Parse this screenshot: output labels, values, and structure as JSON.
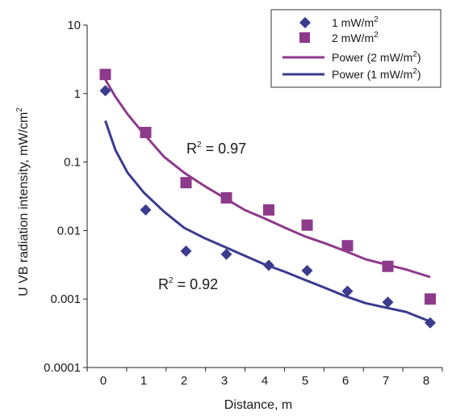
{
  "chart_data": {
    "type": "scatter",
    "title": "",
    "xlabel": "Distance, m",
    "ylabel": {
      "text": "U VB radiation intensity,  mW/cm",
      "sup": "2"
    },
    "x_ticks": [
      "0",
      "1",
      "2",
      "3",
      "4",
      "5",
      "6",
      "7",
      "8"
    ],
    "y_ticks": [
      "0.0001",
      "0.001",
      "0.01",
      "0.1",
      "1",
      "10"
    ],
    "xlim": [
      -0.4,
      8.4
    ],
    "ylim": [
      0.0001,
      10
    ],
    "y_scale": "log",
    "grid": false,
    "legend_position": "top-right",
    "series": [
      {
        "name": "1 mW/m",
        "name_sup": "2",
        "marker": "diamond",
        "color": "#3b3b8f",
        "x": [
          0.05,
          1.05,
          2.05,
          3.05,
          4.1,
          5.05,
          6.05,
          7.05,
          8.1
        ],
        "values": [
          1.1,
          0.02,
          0.005,
          0.0045,
          0.0031,
          0.0026,
          0.0013,
          0.0009,
          0.00045
        ]
      },
      {
        "name": "2 mW/m",
        "name_sup": "2",
        "marker": "square",
        "color": "#8e3a8c",
        "x": [
          0.05,
          1.05,
          2.05,
          3.05,
          4.1,
          5.05,
          6.05,
          7.05,
          8.1
        ],
        "values": [
          1.9,
          0.27,
          0.05,
          0.03,
          0.02,
          0.012,
          0.006,
          0.003,
          0.001
        ]
      }
    ],
    "trendlines": [
      {
        "name": "Power (2 mW/m",
        "name_sup": "2",
        "name_tail": ")",
        "color": "#8e3a8c",
        "x": [
          0.05,
          0.3,
          0.6,
          1.0,
          1.5,
          2.0,
          2.5,
          3.0,
          3.5,
          4.0,
          4.5,
          5.0,
          5.5,
          6.0,
          6.5,
          7.0,
          7.5,
          8.1
        ],
        "values": [
          1.6,
          0.9,
          0.5,
          0.26,
          0.12,
          0.07,
          0.045,
          0.03,
          0.02,
          0.015,
          0.011,
          0.0082,
          0.0065,
          0.005,
          0.0038,
          0.0032,
          0.0027,
          0.0021
        ]
      },
      {
        "name": "Power (1 mW/m",
        "name_sup": "2",
        "name_tail": ")",
        "color": "#3b3b8f",
        "x": [
          0.05,
          0.3,
          0.6,
          1.0,
          1.5,
          2.0,
          2.5,
          3.0,
          3.5,
          4.0,
          4.5,
          5.0,
          5.5,
          6.0,
          6.5,
          7.0,
          7.5,
          8.1
        ],
        "values": [
          0.4,
          0.15,
          0.07,
          0.036,
          0.019,
          0.011,
          0.0078,
          0.0058,
          0.0043,
          0.0032,
          0.0025,
          0.0019,
          0.00145,
          0.0011,
          0.00087,
          0.00075,
          0.00065,
          0.00047
        ]
      }
    ],
    "annotations": [
      {
        "name": "r2-purple",
        "text": "R",
        "sup": "2",
        "tail": " = 0.97"
      },
      {
        "name": "r2-blue",
        "text": "R",
        "sup": "2",
        "tail": " = 0.92"
      }
    ]
  }
}
